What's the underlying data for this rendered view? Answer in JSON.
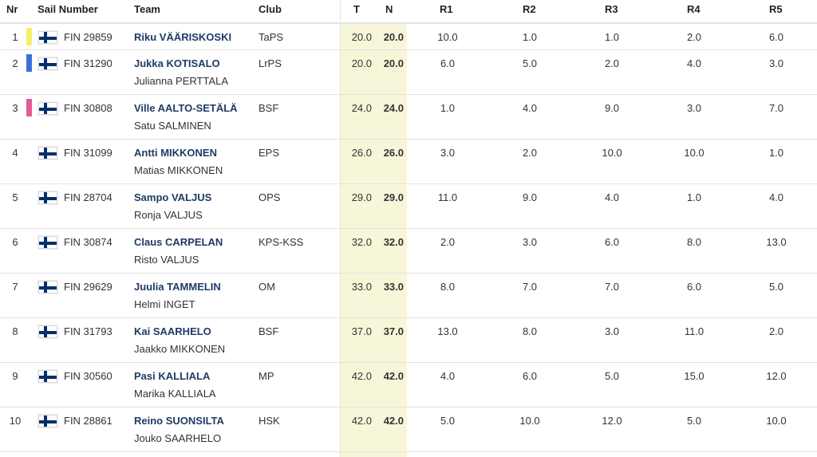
{
  "headers": {
    "nr": "Nr",
    "sail_number": "Sail Number",
    "team": "Team",
    "club": "Club",
    "total": "T",
    "net": "N",
    "r1": "R1",
    "r2": "R2",
    "r3": "R3",
    "r4": "R4",
    "r5": "R5"
  },
  "colors": {
    "accent_yellow": "#f6ef6b",
    "accent_blue": "#3a6fd8",
    "accent_pink": "#e25a95",
    "team_blue": "#1f3b66",
    "highlight_column": "#f8f6d8"
  },
  "rows": [
    {
      "nr": "1",
      "strip_color": "#f6ef6b",
      "sail": "FIN 29859",
      "skipper": "Riku VÄÄRISKOSKI",
      "crew": "",
      "club": "TaPS",
      "total": "20.0",
      "net": "20.0",
      "r1": "10.0",
      "r2": "1.0",
      "r3": "1.0",
      "r4": "2.0",
      "r5": "6.0"
    },
    {
      "nr": "2",
      "strip_color": "#3a6fd8",
      "sail": "FIN 31290",
      "skipper": "Jukka KOTISALO",
      "crew": "Julianna PERTTALA",
      "club": "LrPS",
      "total": "20.0",
      "net": "20.0",
      "r1": "6.0",
      "r2": "5.0",
      "r3": "2.0",
      "r4": "4.0",
      "r5": "3.0"
    },
    {
      "nr": "3",
      "strip_color": "#e25a95",
      "sail": "FIN 30808",
      "skipper": "Ville AALTO-SETÄLÄ",
      "crew": "Satu SALMINEN",
      "club": "BSF",
      "total": "24.0",
      "net": "24.0",
      "r1": "1.0",
      "r2": "4.0",
      "r3": "9.0",
      "r4": "3.0",
      "r5": "7.0"
    },
    {
      "nr": "4",
      "strip_color": "",
      "sail": "FIN 31099",
      "skipper": "Antti MIKKONEN",
      "crew": "Matias MIKKONEN",
      "club": "EPS",
      "total": "26.0",
      "net": "26.0",
      "r1": "3.0",
      "r2": "2.0",
      "r3": "10.0",
      "r4": "10.0",
      "r5": "1.0"
    },
    {
      "nr": "5",
      "strip_color": "",
      "sail": "FIN 28704",
      "skipper": "Sampo VALJUS",
      "crew": "Ronja VALJUS",
      "club": "OPS",
      "total": "29.0",
      "net": "29.0",
      "r1": "11.0",
      "r2": "9.0",
      "r3": "4.0",
      "r4": "1.0",
      "r5": "4.0"
    },
    {
      "nr": "6",
      "strip_color": "",
      "sail": "FIN 30874",
      "skipper": "Claus CARPELAN",
      "crew": "Risto VALJUS",
      "club": "KPS-KSS",
      "total": "32.0",
      "net": "32.0",
      "r1": "2.0",
      "r2": "3.0",
      "r3": "6.0",
      "r4": "8.0",
      "r5": "13.0"
    },
    {
      "nr": "7",
      "strip_color": "",
      "sail": "FIN 29629",
      "skipper": "Juulia TAMMELIN",
      "crew": "Helmi INGET",
      "club": "OM",
      "total": "33.0",
      "net": "33.0",
      "r1": "8.0",
      "r2": "7.0",
      "r3": "7.0",
      "r4": "6.0",
      "r5": "5.0"
    },
    {
      "nr": "8",
      "strip_color": "",
      "sail": "FIN 31793",
      "skipper": "Kai SAARHELO",
      "crew": "Jaakko MIKKONEN",
      "club": "BSF",
      "total": "37.0",
      "net": "37.0",
      "r1": "13.0",
      "r2": "8.0",
      "r3": "3.0",
      "r4": "11.0",
      "r5": "2.0"
    },
    {
      "nr": "9",
      "strip_color": "",
      "sail": "FIN 30560",
      "skipper": "Pasi KALLIALA",
      "crew": "Marika KALLIALA",
      "club": "MP",
      "total": "42.0",
      "net": "42.0",
      "r1": "4.0",
      "r2": "6.0",
      "r3": "5.0",
      "r4": "15.0",
      "r5": "12.0"
    },
    {
      "nr": "10",
      "strip_color": "",
      "sail": "FIN 28861",
      "skipper": "Reino SUONSILTA",
      "crew": "Jouko SAARHELO",
      "club": "HSK",
      "total": "42.0",
      "net": "42.0",
      "r1": "5.0",
      "r2": "10.0",
      "r3": "12.0",
      "r4": "5.0",
      "r5": "10.0"
    }
  ]
}
